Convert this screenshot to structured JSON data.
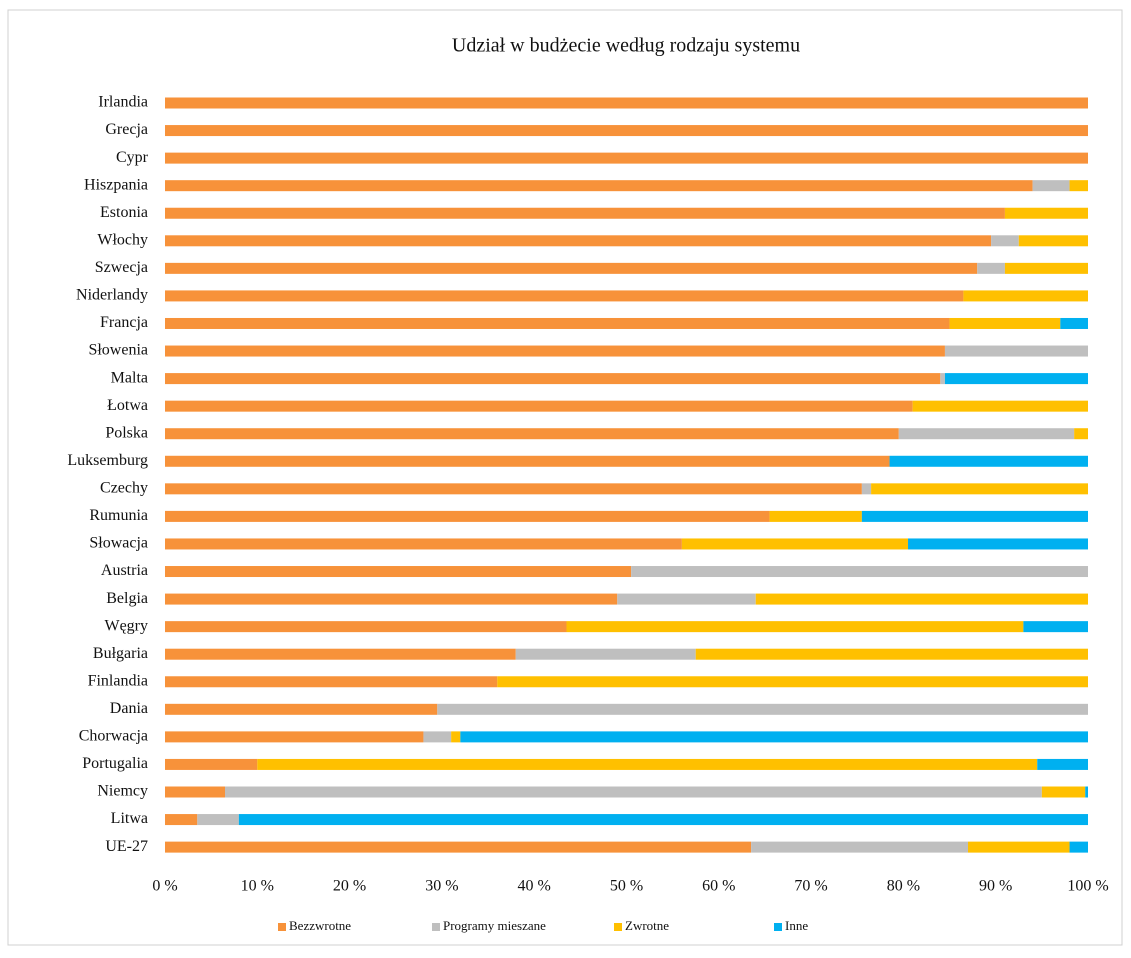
{
  "chart_data": {
    "type": "stacked_barh",
    "title": "Udział w budżecie według rodzaju systemu",
    "categories": [
      "Irlandia",
      "Grecja",
      "Cypr",
      "Hiszpania",
      "Estonia",
      "Włochy",
      "Szwecja",
      "Niderlandy",
      "Francja",
      "Słowenia",
      "Malta",
      "Łotwa",
      "Polska",
      "Luksemburg",
      "Czechy",
      "Rumunia",
      "Słowacja",
      "Austria",
      "Belgia",
      "Węgry",
      "Bułgaria",
      "Finlandia",
      "Dania",
      "Chorwacja",
      "Portugalia",
      "Niemcy",
      "Litwa",
      "UE-27"
    ],
    "series": [
      {
        "name": "Bezzwrotne",
        "color": "#f7923a",
        "values": [
          100,
          100,
          100,
          94,
          91,
          89.5,
          88,
          86.5,
          85,
          84.5,
          84,
          81,
          79.5,
          78.5,
          75.5,
          65.5,
          56,
          50.5,
          49,
          43.5,
          38,
          36,
          29.5,
          28,
          10,
          6.5,
          3.5,
          63.5
        ]
      },
      {
        "name": "Programy mieszane",
        "color": "#bfbfbf",
        "values": [
          0,
          0,
          0,
          4,
          0,
          3,
          3,
          0,
          0,
          15.5,
          0.5,
          0,
          19,
          0,
          1,
          0,
          0,
          49.5,
          15,
          0,
          19.5,
          0,
          70.5,
          3,
          0,
          88.5,
          4.5,
          23.5
        ]
      },
      {
        "name": "Zwrotne",
        "color": "#ffc000",
        "values": [
          0,
          0,
          0,
          2,
          9,
          7.5,
          9,
          13.5,
          12,
          0,
          0,
          19,
          1.5,
          0,
          23.5,
          10,
          24.5,
          0,
          36,
          49.5,
          42.5,
          64,
          0,
          1,
          84.5,
          4.7,
          0,
          11
        ]
      },
      {
        "name": "Inne",
        "color": "#00b0f0",
        "values": [
          0,
          0,
          0,
          0,
          0,
          0,
          0,
          0,
          3,
          0,
          15.5,
          0,
          0,
          21.5,
          0,
          24.5,
          19.5,
          0,
          0,
          7,
          0,
          0,
          0,
          68,
          5.5,
          0.3,
          92,
          2
        ]
      }
    ],
    "xlim": [
      0,
      100
    ],
    "xticks": [
      {
        "value": 0,
        "label": "0 %"
      },
      {
        "value": 10,
        "label": "10 %"
      },
      {
        "value": 20,
        "label": "20 %"
      },
      {
        "value": 30,
        "label": "30 %"
      },
      {
        "value": 40,
        "label": "40 %"
      },
      {
        "value": 50,
        "label": "50 %"
      },
      {
        "value": 60,
        "label": "60 %"
      },
      {
        "value": 70,
        "label": "70 %"
      },
      {
        "value": 80,
        "label": "80 %"
      },
      {
        "value": 90,
        "label": "90 %"
      },
      {
        "value": 100,
        "label": "100 %"
      }
    ],
    "grid": false,
    "legend": "bottom"
  }
}
